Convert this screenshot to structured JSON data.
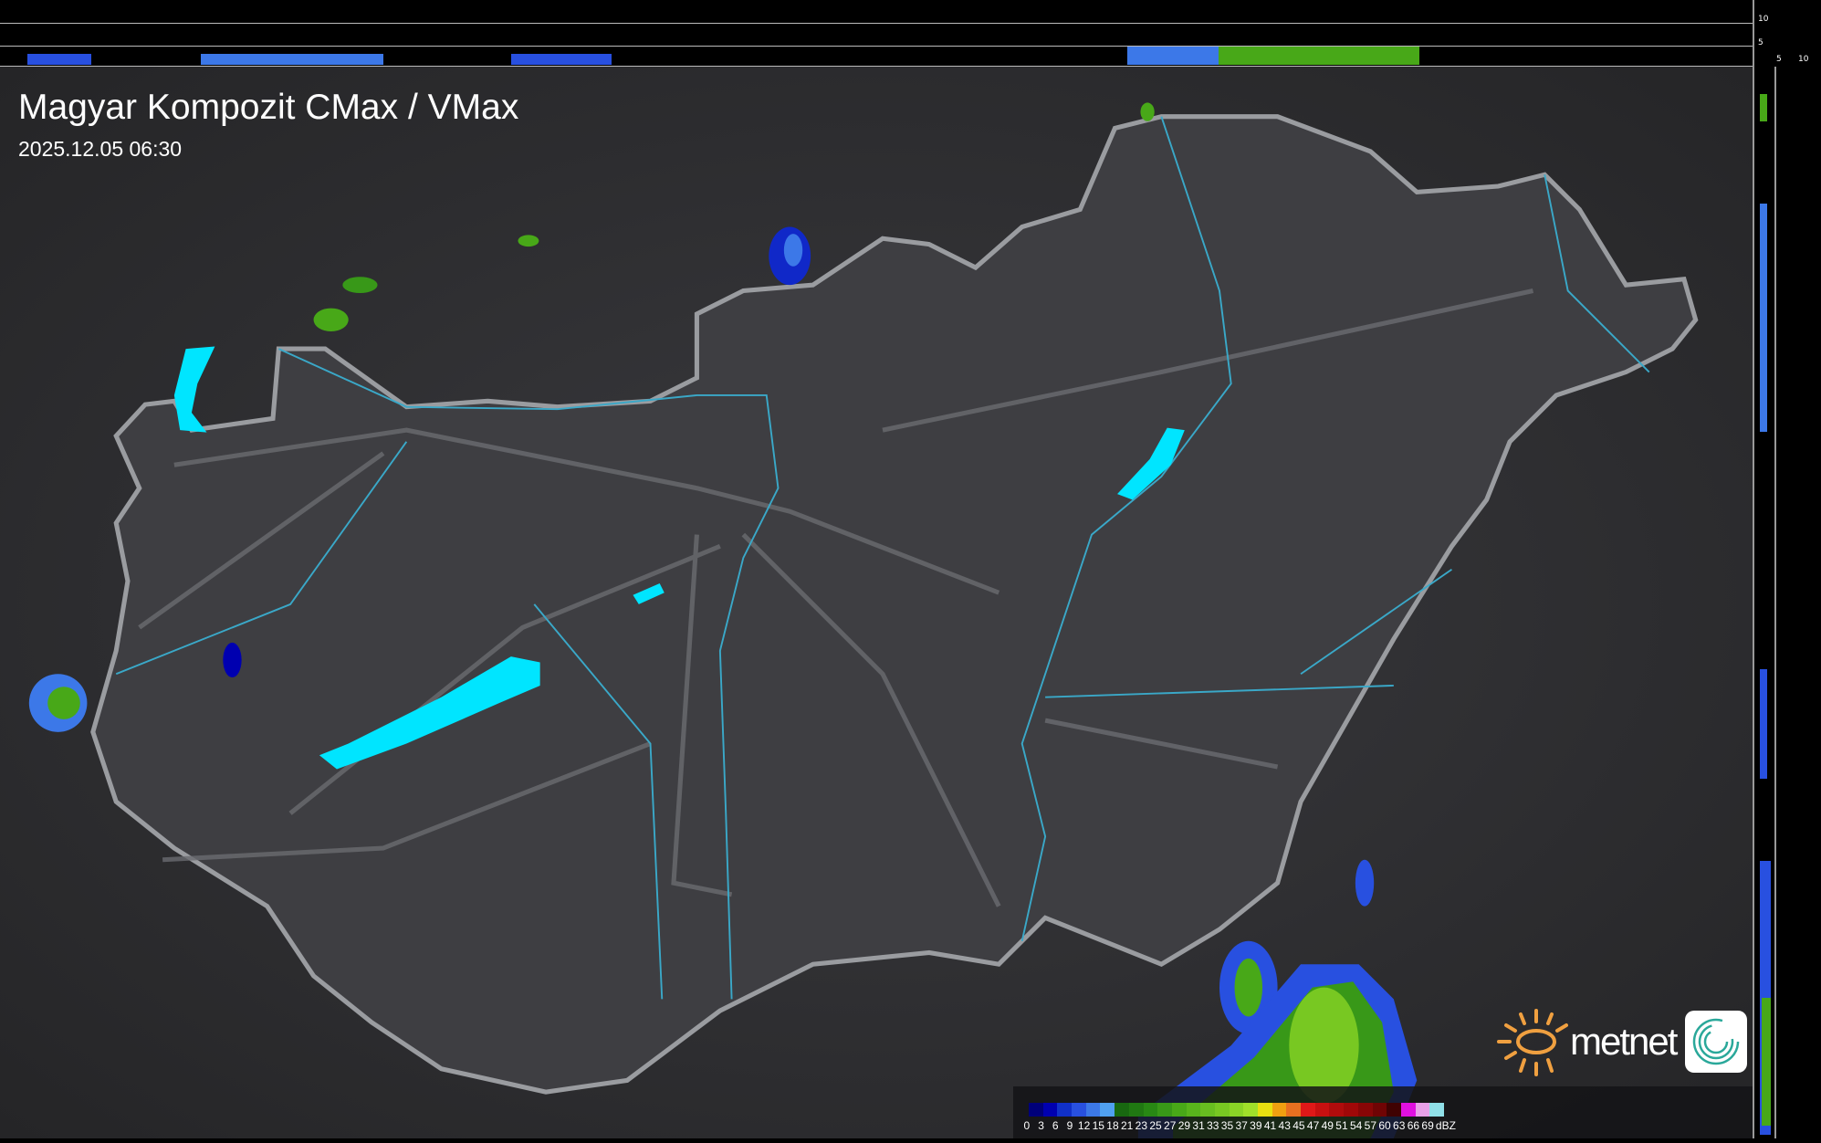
{
  "header": {
    "title": "Magyar Kompozit CMax / VMax",
    "datetime": "2025.12.05 06:30"
  },
  "profile_scale": {
    "top_ticks": [
      "10",
      "5"
    ],
    "right_ticks": [
      "5",
      "10"
    ]
  },
  "brand": {
    "name": "metnet",
    "icon": "sun-icon",
    "app_icon": "spiral-logo-icon",
    "sun_color": "#f0a040"
  },
  "legend": {
    "unit": "dBZ",
    "values": [
      "0",
      "3",
      "6",
      "9",
      "12",
      "15",
      "18",
      "21",
      "23",
      "25",
      "27",
      "29",
      "31",
      "33",
      "35",
      "37",
      "39",
      "41",
      "43",
      "45",
      "47",
      "49",
      "51",
      "54",
      "57",
      "60",
      "63",
      "66",
      "69"
    ],
    "colors": [
      "#00007a",
      "#0000b0",
      "#1030c8",
      "#2850e0",
      "#3c78e8",
      "#50a0f0",
      "#186810",
      "#207812",
      "#288814",
      "#389818",
      "#48a818",
      "#58b41c",
      "#68be20",
      "#78c822",
      "#8ad426",
      "#a0e02a",
      "#e8e010",
      "#f0a010",
      "#e87020",
      "#e01818",
      "#c81010",
      "#b00c0c",
      "#a00808",
      "#880606",
      "#700404",
      "#400202",
      "#e010e0",
      "#e8a0e8",
      "#90e0e8"
    ]
  },
  "colors": {
    "lake": "#00e5ff",
    "border": "#9a9ca0",
    "river": "#3aa8c8",
    "land": "#38383c"
  }
}
